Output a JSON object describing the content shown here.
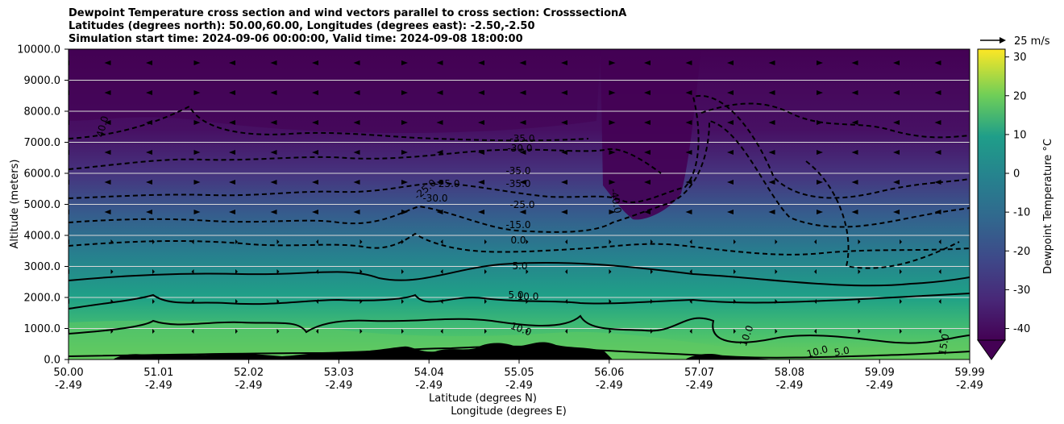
{
  "titles": {
    "line1": "Dewpoint Temperature cross section and wind vectors parallel to cross section: CrosssectionA",
    "line2": "Latitudes (degrees north): 50.00,60.00, Longitudes (degrees east): -2.50,-2.50",
    "line3": "Simulation start time: 2024-09-06 00:00:00, Valid time: 2024-09-08 18:00:00"
  },
  "chart_data": {
    "type": "heatmap",
    "ylabel": "Altitude (meters)",
    "xlabel_lat": "Latitude (degrees N)",
    "xlabel_lon": "Longitude (degrees E)",
    "ylim": [
      0,
      10000
    ],
    "yticks": [
      "0.0",
      "1000.0",
      "2000.0",
      "3000.0",
      "4000.0",
      "5000.0",
      "6000.0",
      "7000.0",
      "8000.0",
      "9000.0",
      "10000.0"
    ],
    "xticks_lat": [
      "50.00",
      "51.01",
      "52.02",
      "53.03",
      "54.04",
      "55.05",
      "56.06",
      "57.07",
      "58.08",
      "59.09",
      "59.99"
    ],
    "xticks_lon": [
      "-2.49",
      "-2.49",
      "-2.49",
      "-2.49",
      "-2.49",
      "-2.49",
      "-2.49",
      "-2.49",
      "-2.49",
      "-2.49",
      "-2.49"
    ],
    "grid_horizontal": true,
    "colorbar": {
      "label": "Dewpoint Temperature °C",
      "range": [
        -43,
        32
      ],
      "ticks": [
        "-40",
        "-30",
        "-20",
        "-10",
        "0",
        "10",
        "20",
        "30"
      ],
      "extend": "min"
    },
    "vector_key": "25 m/s",
    "contour_labels": [
      "40.0",
      "-25.0",
      "-25.0",
      "-30.0",
      "-40.0",
      "-35.0",
      "-30.0",
      "-35.0",
      "-35.0",
      "-25.0",
      "-15.0",
      "0.0",
      "5.0",
      "5.0",
      "10.0",
      "10.0",
      "10.0",
      "10.0",
      "5.0",
      "15.0"
    ]
  },
  "colors": {
    "cold": "#440154",
    "mid": "#21908d",
    "warm": "#5ec962",
    "hot": "#fde725",
    "terrain": "#000000"
  }
}
